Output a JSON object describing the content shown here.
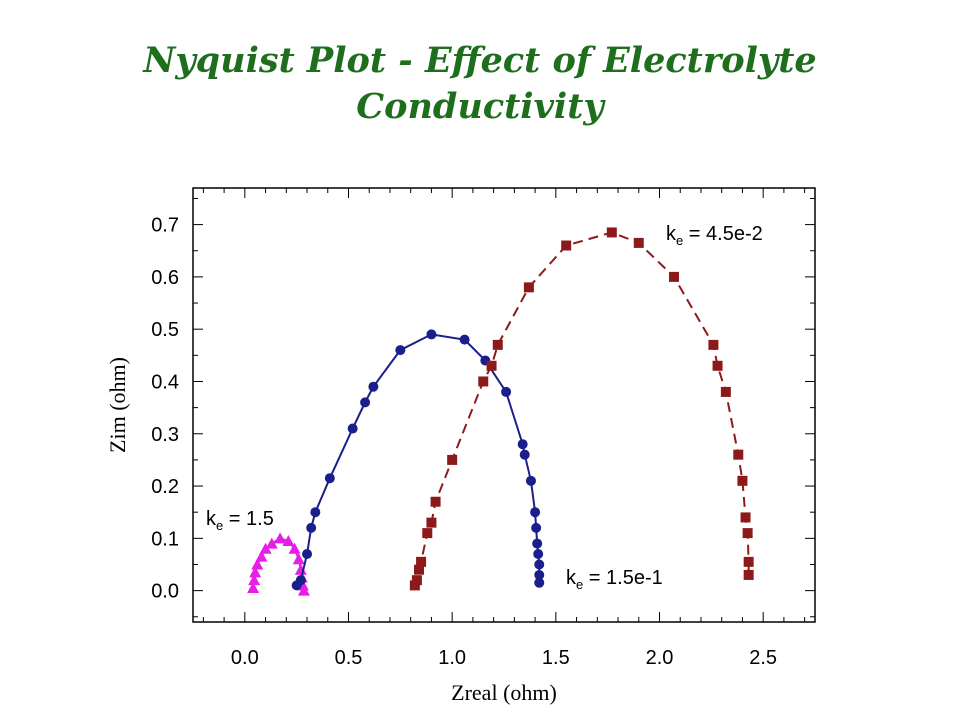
{
  "page": {
    "title_line1": "Nyquist Plot - Effect of Electrolyte",
    "title_line2": "Conductivity"
  },
  "chart_data": {
    "type": "scatter",
    "title": "Nyquist Plot - Effect of Electrolyte Conductivity",
    "xlabel": "Zreal (ohm)",
    "ylabel": "Zim (ohm)",
    "xlim": [
      -0.25,
      2.75
    ],
    "ylim": [
      -0.06,
      0.77
    ],
    "xticks": [
      "0.0",
      "0.5",
      "1.0",
      "1.5",
      "2.0",
      "2.5"
    ],
    "yticks": [
      "0.0",
      "0.1",
      "0.2",
      "0.3",
      "0.4",
      "0.5",
      "0.6",
      "0.7"
    ],
    "grid": false,
    "series": [
      {
        "label_prefix": "k",
        "label_sub": "e",
        "label_value": " = 1.5",
        "marker": "triangle",
        "color": "#e61ee6",
        "line_style": "solid",
        "points": [
          [
            0.04,
            0.005
          ],
          [
            0.045,
            0.02
          ],
          [
            0.05,
            0.035
          ],
          [
            0.06,
            0.05
          ],
          [
            0.08,
            0.065
          ],
          [
            0.1,
            0.08
          ],
          [
            0.13,
            0.09
          ],
          [
            0.17,
            0.1
          ],
          [
            0.21,
            0.095
          ],
          [
            0.24,
            0.08
          ],
          [
            0.26,
            0.06
          ],
          [
            0.27,
            0.04
          ],
          [
            0.275,
            0.025
          ],
          [
            0.28,
            0.01
          ],
          [
            0.285,
            0.0
          ]
        ]
      },
      {
        "label_prefix": "k",
        "label_sub": "e",
        "label_value": " = 1.5e-1",
        "marker": "circle",
        "color": "#1a1f8c",
        "line_style": "solid",
        "points": [
          [
            0.25,
            0.01
          ],
          [
            0.27,
            0.02
          ],
          [
            0.3,
            0.07
          ],
          [
            0.32,
            0.12
          ],
          [
            0.34,
            0.15
          ],
          [
            0.41,
            0.215
          ],
          [
            0.52,
            0.31
          ],
          [
            0.58,
            0.36
          ],
          [
            0.62,
            0.39
          ],
          [
            0.75,
            0.46
          ],
          [
            0.9,
            0.49
          ],
          [
            1.06,
            0.48
          ],
          [
            1.16,
            0.44
          ],
          [
            1.26,
            0.38
          ],
          [
            1.34,
            0.28
          ],
          [
            1.35,
            0.26
          ],
          [
            1.38,
            0.21
          ],
          [
            1.4,
            0.15
          ],
          [
            1.405,
            0.12
          ],
          [
            1.41,
            0.09
          ],
          [
            1.415,
            0.07
          ],
          [
            1.42,
            0.05
          ],
          [
            1.42,
            0.03
          ],
          [
            1.42,
            0.015
          ]
        ]
      },
      {
        "label_prefix": "k",
        "label_sub": "e",
        "label_value": " = 4.5e-2",
        "marker": "square",
        "color": "#8c1a1a",
        "line_style": "dashed",
        "points": [
          [
            0.82,
            0.01
          ],
          [
            0.83,
            0.02
          ],
          [
            0.84,
            0.04
          ],
          [
            0.85,
            0.055
          ],
          [
            0.88,
            0.11
          ],
          [
            0.9,
            0.13
          ],
          [
            0.92,
            0.17
          ],
          [
            1.0,
            0.25
          ],
          [
            1.15,
            0.4
          ],
          [
            1.19,
            0.43
          ],
          [
            1.22,
            0.47
          ],
          [
            1.37,
            0.58
          ],
          [
            1.55,
            0.66
          ],
          [
            1.77,
            0.685
          ],
          [
            1.9,
            0.665
          ],
          [
            2.07,
            0.6
          ],
          [
            2.26,
            0.47
          ],
          [
            2.28,
            0.43
          ],
          [
            2.32,
            0.38
          ],
          [
            2.38,
            0.26
          ],
          [
            2.4,
            0.21
          ],
          [
            2.415,
            0.14
          ],
          [
            2.425,
            0.11
          ],
          [
            2.43,
            0.055
          ],
          [
            2.43,
            0.03
          ]
        ]
      }
    ]
  }
}
